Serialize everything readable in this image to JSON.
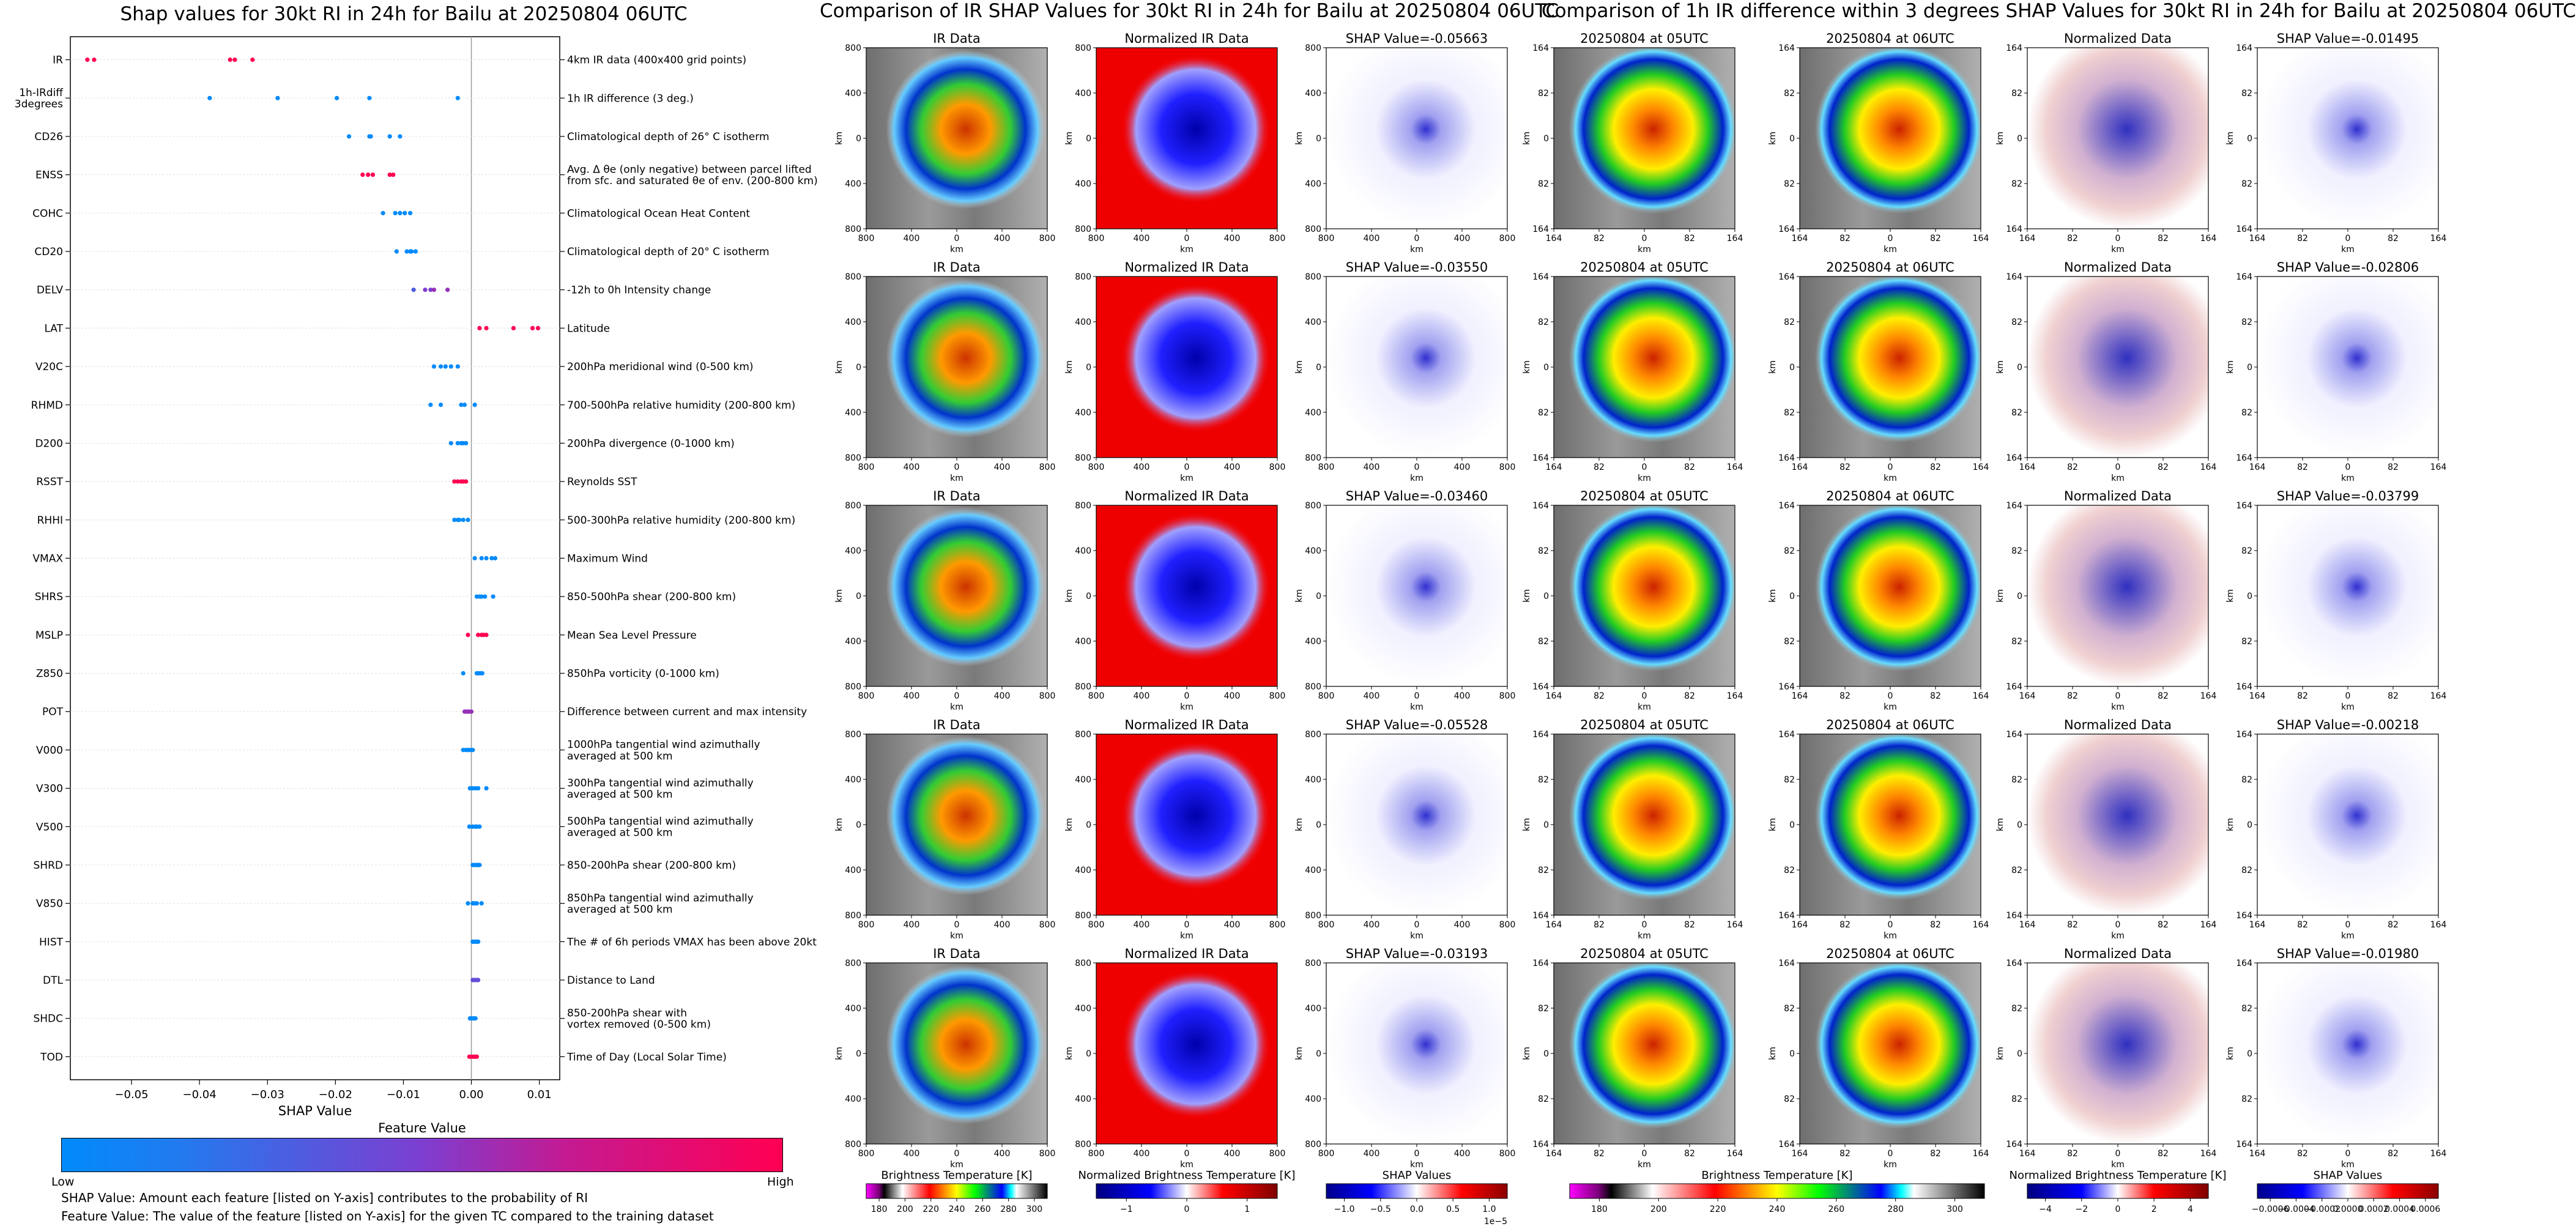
{
  "chart_data": [
    {
      "type": "scatter",
      "title": "Shap values for 30kt RI in 24h for Bailu at 20250804 06UTC",
      "xlabel": "SHAP Value",
      "xlim": [
        -0.059,
        0.013
      ],
      "xticks": [
        -0.05,
        -0.04,
        -0.03,
        -0.02,
        -0.01,
        0.0,
        0.01
      ],
      "xtick_labels": [
        "−0.05",
        "−0.04",
        "−0.03",
        "−0.02",
        "−0.01",
        "0.00",
        "0.01"
      ],
      "colorbar": {
        "title": "Feature Value",
        "low_label": "Low",
        "high_label": "High",
        "low_color": "#008afb",
        "mid_color": "#7d3ed0",
        "high_color": "#ff0052"
      },
      "notes": [
        "SHAP Value: Amount each feature [listed on Y-axis] contributes to the probability of RI",
        "Feature Value: The value of the feature [listed on Y-axis] for the given TC compared to the training dataset"
      ],
      "features": [
        {
          "name": "IR",
          "description": "4km IR data (400x400 grid points)",
          "points": [
            [
              -0.0565,
              1
            ],
            [
              -0.0555,
              1
            ],
            [
              -0.0355,
              1
            ],
            [
              -0.0348,
              1
            ],
            [
              -0.0322,
              1
            ]
          ]
        },
        {
          "name": "1h-IRdiff\n3degrees",
          "description": "1h IR difference (3 deg.)",
          "points": [
            [
              -0.0385,
              0
            ],
            [
              -0.0285,
              0
            ],
            [
              -0.0198,
              0
            ],
            [
              -0.015,
              0
            ],
            [
              -0.002,
              0
            ]
          ]
        },
        {
          "name": "CD26",
          "description": "Climatological depth of 26° C isotherm",
          "points": [
            [
              -0.018,
              0
            ],
            [
              -0.015,
              0
            ],
            [
              -0.0148,
              0
            ],
            [
              -0.012,
              0
            ],
            [
              -0.0105,
              0
            ]
          ]
        },
        {
          "name": "ENSS",
          "description": "Avg. Δ θe (only negative) between parcel lifted\nfrom sfc. and saturated θe of env. (200-800 km)",
          "points": [
            [
              -0.016,
              1
            ],
            [
              -0.0152,
              1
            ],
            [
              -0.0145,
              1
            ],
            [
              -0.012,
              1
            ],
            [
              -0.0115,
              1
            ]
          ]
        },
        {
          "name": "COHC",
          "description": "Climatological Ocean Heat Content",
          "points": [
            [
              -0.013,
              0
            ],
            [
              -0.0112,
              0
            ],
            [
              -0.0105,
              0
            ],
            [
              -0.0098,
              0
            ],
            [
              -0.009,
              0
            ]
          ]
        },
        {
          "name": "CD20",
          "description": "Climatological depth of 20° C isotherm",
          "points": [
            [
              -0.011,
              0
            ],
            [
              -0.0095,
              0
            ],
            [
              -0.009,
              0
            ],
            [
              -0.0088,
              0
            ],
            [
              -0.0082,
              0
            ]
          ]
        },
        {
          "name": "DELV",
          "description": "-12h to 0h Intensity change",
          "points": [
            [
              -0.0085,
              0.3
            ],
            [
              -0.0068,
              0.5
            ],
            [
              -0.006,
              0.5
            ],
            [
              -0.0055,
              0.6
            ],
            [
              -0.0035,
              0.6
            ]
          ]
        },
        {
          "name": "LAT",
          "description": "Latitude",
          "points": [
            [
              0.0012,
              1
            ],
            [
              0.0022,
              1
            ],
            [
              0.0062,
              1
            ],
            [
              0.009,
              1
            ],
            [
              0.0098,
              1
            ]
          ]
        },
        {
          "name": "V20C",
          "description": "200hPa meridional wind (0-500 km)",
          "points": [
            [
              -0.0055,
              0
            ],
            [
              -0.0045,
              0
            ],
            [
              -0.0038,
              0
            ],
            [
              -0.003,
              0
            ],
            [
              -0.002,
              0
            ]
          ]
        },
        {
          "name": "RHMD",
          "description": "700-500hPa relative humidity (200-800 km)",
          "points": [
            [
              -0.006,
              0
            ],
            [
              -0.0045,
              0
            ],
            [
              -0.0015,
              0
            ],
            [
              -0.001,
              0
            ],
            [
              0.0005,
              0
            ]
          ]
        },
        {
          "name": "D200",
          "description": "200hPa divergence (0-1000 km)",
          "points": [
            [
              -0.003,
              0
            ],
            [
              -0.002,
              0
            ],
            [
              -0.0015,
              0
            ],
            [
              -0.0012,
              0
            ],
            [
              -0.0008,
              0
            ]
          ]
        },
        {
          "name": "RSST",
          "description": "Reynolds SST",
          "points": [
            [
              -0.0025,
              1
            ],
            [
              -0.002,
              1
            ],
            [
              -0.0015,
              1
            ],
            [
              -0.0012,
              1
            ],
            [
              -0.0008,
              1
            ]
          ]
        },
        {
          "name": "RHHI",
          "description": "500-300hPa relative humidity (200-800 km)",
          "points": [
            [
              -0.0025,
              0
            ],
            [
              -0.002,
              0
            ],
            [
              -0.0018,
              0
            ],
            [
              -0.0012,
              0
            ],
            [
              -0.0005,
              0
            ]
          ]
        },
        {
          "name": "VMAX",
          "description": "Maximum Wind",
          "points": [
            [
              0.0005,
              0
            ],
            [
              0.0015,
              0
            ],
            [
              0.0022,
              0
            ],
            [
              0.003,
              0
            ],
            [
              0.0035,
              0
            ]
          ]
        },
        {
          "name": "SHRS",
          "description": "850-500hPa shear (200-800 km)",
          "points": [
            [
              0.0008,
              0
            ],
            [
              0.0012,
              0
            ],
            [
              0.0015,
              0
            ],
            [
              0.002,
              0
            ],
            [
              0.0032,
              0
            ]
          ]
        },
        {
          "name": "MSLP",
          "description": "Mean Sea Level Pressure",
          "points": [
            [
              -0.0005,
              1
            ],
            [
              0.001,
              1
            ],
            [
              0.0015,
              1
            ],
            [
              0.0018,
              1
            ],
            [
              0.0022,
              1
            ]
          ]
        },
        {
          "name": "Z850",
          "description": "850hPa vorticity (0-1000 km)",
          "points": [
            [
              -0.0012,
              0
            ],
            [
              0.0008,
              0
            ],
            [
              0.001,
              0
            ],
            [
              0.0013,
              0
            ],
            [
              0.0016,
              0
            ]
          ]
        },
        {
          "name": "POT",
          "description": "Difference between current and max intensity",
          "points": [
            [
              -0.001,
              0.6
            ],
            [
              -0.0008,
              0.6
            ],
            [
              -0.0005,
              0.6
            ],
            [
              -0.0003,
              0.6
            ],
            [
              0.0,
              0.6
            ]
          ]
        },
        {
          "name": "V000",
          "description": "1000hPa tangential wind azimuthally\naveraged at 500 km",
          "points": [
            [
              -0.0012,
              0
            ],
            [
              -0.0008,
              0
            ],
            [
              -0.0005,
              0
            ],
            [
              -0.0002,
              0
            ],
            [
              0.0002,
              0
            ]
          ]
        },
        {
          "name": "V300",
          "description": "300hPa tangential wind azimuthally\naveraged at 500 km",
          "points": [
            [
              -0.0002,
              0
            ],
            [
              0.0002,
              0
            ],
            [
              0.0006,
              0
            ],
            [
              0.001,
              0
            ],
            [
              0.0022,
              0
            ]
          ]
        },
        {
          "name": "V500",
          "description": "500hPa tangential wind azimuthally\naveraged at 500 km",
          "points": [
            [
              -0.0003,
              0
            ],
            [
              0.0002,
              0
            ],
            [
              0.0006,
              0
            ],
            [
              0.0008,
              0
            ],
            [
              0.0012,
              0
            ]
          ]
        },
        {
          "name": "SHRD",
          "description": "850-200hPa shear (200-800 km)",
          "points": [
            [
              0.0002,
              0
            ],
            [
              0.0005,
              0
            ],
            [
              0.0008,
              0
            ],
            [
              0.001,
              0
            ],
            [
              0.0012,
              0
            ]
          ]
        },
        {
          "name": "V850",
          "description": "850hPa tangential wind azimuthally\naveraged at 500 km",
          "points": [
            [
              -0.0005,
              0
            ],
            [
              0.0002,
              0
            ],
            [
              0.0005,
              0
            ],
            [
              0.0008,
              0
            ],
            [
              0.0015,
              0
            ]
          ]
        },
        {
          "name": "HIST",
          "description": "The # of 6h periods VMAX has been above 20kt",
          "points": [
            [
              0.0002,
              0
            ],
            [
              0.0004,
              0
            ],
            [
              0.0006,
              0
            ],
            [
              0.0008,
              0
            ],
            [
              0.001,
              0
            ]
          ]
        },
        {
          "name": "DTL",
          "description": "Distance to Land",
          "points": [
            [
              0.0002,
              0.4
            ],
            [
              0.0004,
              0.4
            ],
            [
              0.0006,
              0.4
            ],
            [
              0.0008,
              0.4
            ],
            [
              0.001,
              0.4
            ]
          ]
        },
        {
          "name": "SHDC",
          "description": "850-200hPa shear with\nvortex removed (0-500 km)",
          "points": [
            [
              -0.0002,
              0
            ],
            [
              0.0,
              0
            ],
            [
              0.0002,
              0
            ],
            [
              0.0004,
              0
            ],
            [
              0.0006,
              0
            ]
          ]
        },
        {
          "name": "TOD",
          "description": "Time of Day (Local Solar Time)",
          "points": [
            [
              -0.0003,
              1
            ],
            [
              0.0,
              1
            ],
            [
              0.0003,
              1
            ],
            [
              0.0005,
              1
            ],
            [
              0.0008,
              1
            ]
          ]
        }
      ]
    },
    {
      "type": "heatmap",
      "title": "Comparison of IR SHAP Values for 30kt RI in 24h for Bailu at 20250804 06UTC",
      "axis_label": "km",
      "tick_labels": [
        "800",
        "400",
        "0",
        "400",
        "800"
      ],
      "columns": [
        "IR Data",
        "Normalized IR Data"
      ],
      "shap_titles": [
        "SHAP Value=-0.05663",
        "SHAP Value=-0.03550",
        "SHAP Value=-0.03460",
        "SHAP Value=-0.05528",
        "SHAP Value=-0.03193"
      ],
      "colorbars": [
        {
          "label": "Brightness Temperature [K]",
          "ticks": [
            "180",
            "200",
            "220",
            "240",
            "260",
            "280",
            "300"
          ]
        },
        {
          "label": "Normalized Brightness Temperature [K]",
          "ticks": [
            "−1",
            "0",
            "1"
          ]
        },
        {
          "label": "SHAP Values",
          "ticks": [
            "−1.0",
            "−0.5",
            "0.0",
            "0.5",
            "1.0"
          ],
          "offset": "1e−5"
        }
      ]
    },
    {
      "type": "heatmap",
      "title": "Comparison of 1h IR difference within 3 degrees SHAP Values for 30kt RI in 24h for Bailu at 20250804 06UTC",
      "axis_label": "km",
      "tick_labels": [
        "164",
        "82",
        "0",
        "82",
        "164"
      ],
      "columns": [
        "20250804 at 05UTC",
        "20250804 at 06UTC",
        "Normalized Data"
      ],
      "shap_titles": [
        "SHAP Value=-0.01495",
        "SHAP Value=-0.02806",
        "SHAP Value=-0.03799",
        "SHAP Value=-0.00218",
        "SHAP Value=-0.01980"
      ],
      "colorbars": [
        {
          "label": "Brightness Temperature [K]",
          "ticks": [
            "180",
            "200",
            "220",
            "240",
            "260",
            "280",
            "300"
          ]
        },
        {
          "label": "Normalized Brightness Temperature [K]",
          "ticks": [
            "−4",
            "−2",
            "0",
            "2",
            "4"
          ]
        },
        {
          "label": "SHAP Values",
          "ticks": [
            "−0.0006",
            "−0.0004",
            "−0.0002",
            "0.0000",
            "0.0002",
            "0.0004",
            "0.0006"
          ]
        }
      ]
    }
  ]
}
